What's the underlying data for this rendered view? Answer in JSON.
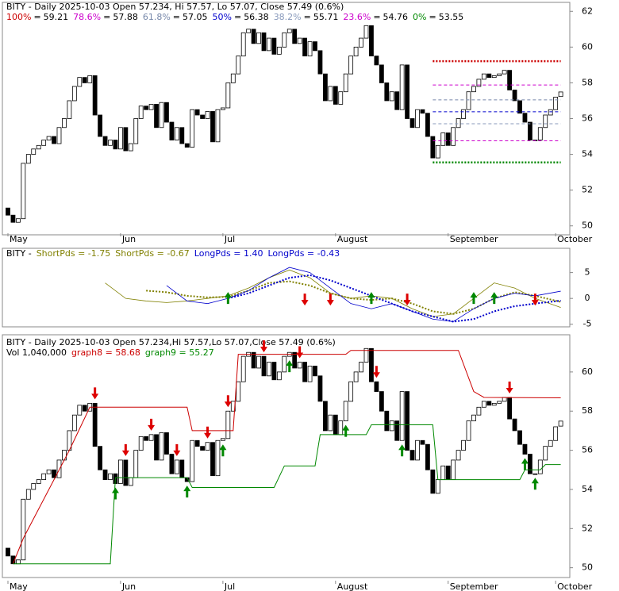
{
  "chart_data": [
    {
      "type": "candlestick",
      "title": "BITY - Daily 2025-10-03 Open 57.234, Hi 57.57, Lo 57.07, Close 57.49 (0.6%)",
      "open": [
        51.0,
        50.6,
        50.2,
        50.4,
        53.5,
        54.0,
        54.3,
        54.5,
        54.8,
        55.0,
        54.6,
        55.5,
        56.0,
        57.0,
        57.8,
        58.3,
        58.0,
        58.4,
        56.2,
        55.0,
        54.5,
        54.8,
        54.3,
        55.5,
        54.2,
        54.6,
        56.0,
        56.7,
        56.5,
        56.8,
        55.5,
        56.9,
        55.8,
        54.8,
        55.5,
        54.6,
        54.4,
        56.5,
        56.2,
        56.0,
        56.4,
        54.7,
        56.5,
        56.6,
        58.0,
        58.5,
        59.5,
        60.8,
        61.0,
        60.2,
        60.8,
        59.8,
        60.5,
        59.6,
        60.0,
        60.8,
        61.0,
        60.2,
        60.5,
        59.5,
        60.3,
        59.8,
        58.5,
        57.0,
        57.8,
        56.8,
        57.5,
        58.5,
        59.5,
        60.0,
        60.5,
        61.2,
        59.5,
        59.0,
        58.0,
        57.0,
        57.5,
        56.5,
        59.0,
        56.0,
        55.5,
        56.5,
        56.3,
        55.0,
        53.8,
        54.5,
        55.2,
        54.5,
        55.5,
        56.0,
        56.5,
        57.5,
        57.8,
        58.2,
        58.5,
        58.3,
        58.4,
        58.5,
        58.7,
        57.6,
        57.0,
        56.3,
        55.8,
        54.8,
        54.8,
        55.5,
        56.2,
        56.5,
        57.234
      ],
      "close": [
        50.6,
        50.2,
        50.4,
        53.5,
        54.0,
        54.3,
        54.5,
        54.8,
        55.0,
        54.6,
        55.5,
        56.0,
        57.0,
        57.8,
        58.3,
        58.0,
        58.4,
        56.2,
        55.0,
        54.5,
        54.8,
        54.3,
        55.5,
        54.2,
        54.6,
        56.0,
        56.7,
        56.5,
        56.8,
        55.5,
        56.9,
        55.8,
        54.8,
        55.5,
        54.6,
        54.4,
        56.5,
        56.2,
        56.0,
        56.4,
        54.7,
        56.5,
        56.6,
        58.0,
        58.5,
        59.5,
        60.8,
        61.0,
        60.2,
        60.8,
        59.8,
        60.5,
        59.6,
        60.0,
        60.8,
        61.0,
        60.2,
        60.5,
        59.5,
        60.3,
        59.8,
        58.5,
        57.0,
        57.8,
        56.8,
        57.5,
        58.5,
        59.5,
        60.0,
        60.5,
        61.2,
        59.5,
        59.0,
        58.0,
        57.0,
        57.5,
        56.5,
        59.0,
        56.0,
        55.5,
        56.5,
        56.3,
        55.0,
        53.8,
        54.5,
        55.2,
        54.5,
        55.5,
        56.0,
        56.5,
        57.5,
        57.8,
        58.2,
        58.5,
        58.3,
        58.4,
        58.5,
        58.7,
        57.6,
        57.0,
        56.3,
        55.8,
        54.8,
        54.8,
        55.5,
        56.2,
        56.5,
        57.2,
        57.49
      ],
      "xticks": [
        {
          "value": 0,
          "label": "May"
        },
        {
          "value": 22,
          "label": "Jun"
        },
        {
          "value": 42,
          "label": "Jul"
        },
        {
          "value": 64,
          "label": "August"
        },
        {
          "value": 86,
          "label": "September"
        },
        {
          "value": 107,
          "label": "October"
        }
      ],
      "separator": "=",
      "fib": {
        "start": 83,
        "end": 108,
        "levels": [
          {
            "label": "100%",
            "value": 59.21,
            "color": "#cc0000"
          },
          {
            "label": "78.6%",
            "value": 57.88,
            "color": "#cc00cc"
          },
          {
            "label": "61.8%",
            "value": 57.05,
            "color": "#7788aa"
          },
          {
            "label": "50%",
            "value": 56.38,
            "color": "#0000cc"
          },
          {
            "label": "38.2%",
            "value": 55.71,
            "color": "#8899bb"
          },
          {
            "label": "23.6%",
            "value": 54.76,
            "color": "#cc00cc"
          },
          {
            "label": "0%",
            "value": 53.55,
            "color": "#008800"
          }
        ]
      },
      "ylim": [
        49.5,
        62.5
      ],
      "yticks": [
        50,
        52,
        54,
        56,
        58,
        60,
        62
      ]
    },
    {
      "type": "line",
      "prefix": "BITY -",
      "x": [
        19,
        23,
        27,
        31,
        35,
        39,
        43,
        47,
        51,
        55,
        59,
        63,
        67,
        71,
        75,
        79,
        83,
        87,
        91,
        95,
        99,
        103,
        108
      ],
      "series": [
        {
          "name": "ShortPds = -1.75",
          "color": "#808000",
          "style": "thin",
          "values": [
            3,
            0,
            -0.5,
            -0.8,
            -0.5,
            0,
            0.5,
            2,
            4,
            5.5,
            4,
            1,
            0,
            0.5,
            0,
            -2,
            -3.5,
            -3,
            0,
            3,
            2,
            0,
            -1.75
          ]
        },
        {
          "name": "ShortPds = -0.67",
          "color": "#808000",
          "style": "dots",
          "values": [
            null,
            null,
            1.5,
            1.2,
            0.5,
            0.2,
            0.3,
            1.5,
            3,
            3.3,
            2.5,
            1,
            0,
            -0.3,
            0,
            -1,
            -2.5,
            -3,
            -2,
            0,
            1.2,
            0.5,
            -0.67
          ]
        },
        {
          "name": "LongPds = 1.40",
          "color": "#0000cc",
          "style": "thin",
          "values": [
            null,
            null,
            null,
            2.5,
            -0.5,
            -1,
            0,
            1.5,
            4,
            6,
            5,
            2,
            -1,
            -2,
            -1,
            -2.5,
            -4,
            -4.5,
            -2,
            0,
            1,
            0.5,
            1.4
          ]
        },
        {
          "name": "LongPds = -0.43",
          "color": "#0000cc",
          "style": "dots",
          "values": [
            null,
            null,
            null,
            null,
            null,
            null,
            0,
            1,
            2.5,
            4,
            4.5,
            3.5,
            2,
            0.5,
            -1,
            -2.5,
            -3.5,
            -4.5,
            -4,
            -2.5,
            -1.5,
            -1,
            -0.43
          ]
        }
      ],
      "buy_signals": [
        43,
        71,
        91,
        95
      ],
      "sell_signals": [
        58,
        63,
        78,
        103
      ],
      "ylim": [
        -5.5,
        9.7
      ],
      "yticks": [
        -5,
        0,
        5
      ]
    },
    {
      "type": "candlestick",
      "title": "BITY - Daily 2025-10-03 Open 57.234,Hi 57.57,Lo 57.07,Close 57.49 (0.6%)",
      "series": [
        {
          "name": "Vol 1,040,000",
          "color": "#000000"
        },
        {
          "name": "graph8 = 58.68",
          "color": "#cc0000",
          "x": [
            1,
            3,
            6,
            9,
            12,
            16,
            35,
            36,
            44,
            45,
            66,
            67,
            88,
            91,
            93,
            108
          ],
          "values": [
            50.2,
            51.5,
            53,
            54.5,
            56,
            58.2,
            58.2,
            57,
            57,
            60.9,
            60.9,
            61.1,
            61.1,
            59,
            58.7,
            58.68
          ]
        },
        {
          "name": "graph9 = 55.27",
          "color": "#008800",
          "x": [
            1,
            20,
            21,
            35,
            36,
            52,
            54,
            60,
            61,
            70,
            71,
            83,
            84,
            100,
            101,
            104,
            105,
            108
          ],
          "values": [
            50.2,
            50.2,
            54.6,
            54.6,
            54.1,
            54.1,
            55.2,
            55.2,
            56.8,
            56.8,
            57.3,
            57.3,
            54.5,
            54.5,
            55.0,
            55.0,
            55.27,
            55.27
          ]
        }
      ],
      "buy_signals": [
        21,
        35,
        42,
        55,
        66,
        77,
        101,
        103
      ],
      "sell_signals": [
        17,
        23,
        28,
        33,
        39,
        43,
        50,
        57,
        72,
        98
      ],
      "ylim": [
        49.5,
        61.9
      ],
      "yticks": [
        50,
        52,
        54,
        56,
        58,
        60
      ]
    }
  ]
}
